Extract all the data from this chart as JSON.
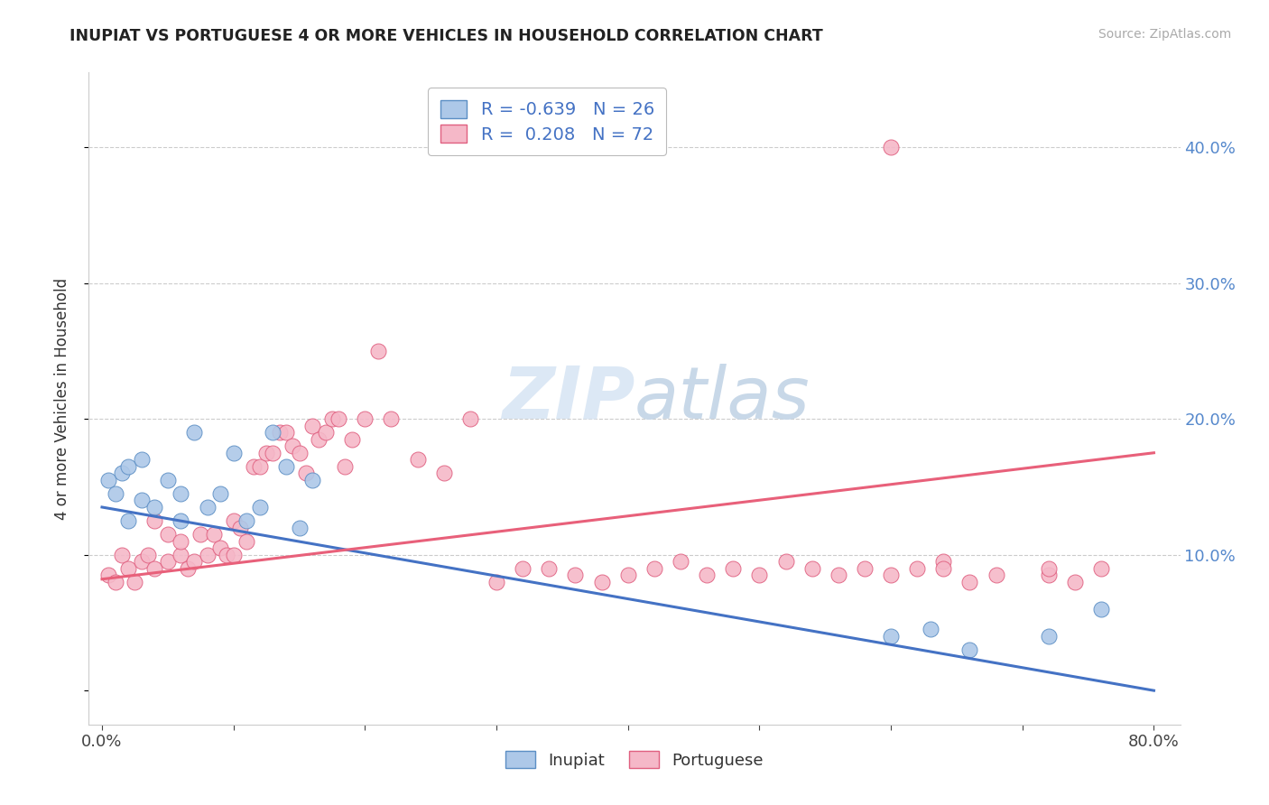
{
  "title": "INUPIAT VS PORTUGUESE 4 OR MORE VEHICLES IN HOUSEHOLD CORRELATION CHART",
  "source": "Source: ZipAtlas.com",
  "ylabel": "4 or more Vehicles in Household",
  "xlim": [
    -0.01,
    0.82
  ],
  "ylim": [
    -0.025,
    0.455
  ],
  "inupiat_R": -0.639,
  "inupiat_N": 26,
  "portuguese_R": 0.208,
  "portuguese_N": 72,
  "inupiat_color": "#adc8e8",
  "portuguese_color": "#f5b8c8",
  "inupiat_edge_color": "#5b8ec4",
  "portuguese_edge_color": "#e06080",
  "inupiat_line_color": "#4472c4",
  "portuguese_line_color": "#e8607a",
  "background_color": "#ffffff",
  "inupiat_x": [
    0.005,
    0.01,
    0.015,
    0.02,
    0.02,
    0.03,
    0.03,
    0.04,
    0.05,
    0.06,
    0.06,
    0.07,
    0.08,
    0.09,
    0.1,
    0.11,
    0.12,
    0.13,
    0.14,
    0.15,
    0.16,
    0.6,
    0.63,
    0.66,
    0.72,
    0.76
  ],
  "inupiat_y": [
    0.155,
    0.145,
    0.16,
    0.165,
    0.125,
    0.17,
    0.14,
    0.135,
    0.155,
    0.125,
    0.145,
    0.19,
    0.135,
    0.145,
    0.175,
    0.125,
    0.135,
    0.19,
    0.165,
    0.12,
    0.155,
    0.04,
    0.045,
    0.03,
    0.04,
    0.06
  ],
  "portuguese_x": [
    0.005,
    0.01,
    0.015,
    0.02,
    0.025,
    0.03,
    0.035,
    0.04,
    0.04,
    0.05,
    0.05,
    0.06,
    0.06,
    0.065,
    0.07,
    0.075,
    0.08,
    0.085,
    0.09,
    0.095,
    0.1,
    0.1,
    0.105,
    0.11,
    0.115,
    0.12,
    0.125,
    0.13,
    0.135,
    0.14,
    0.145,
    0.15,
    0.155,
    0.16,
    0.165,
    0.17,
    0.175,
    0.18,
    0.185,
    0.19,
    0.2,
    0.21,
    0.22,
    0.24,
    0.26,
    0.28,
    0.3,
    0.32,
    0.34,
    0.36,
    0.38,
    0.4,
    0.42,
    0.44,
    0.46,
    0.48,
    0.5,
    0.52,
    0.54,
    0.56,
    0.58,
    0.6,
    0.6,
    0.62,
    0.64,
    0.64,
    0.66,
    0.68,
    0.72,
    0.72,
    0.74,
    0.76
  ],
  "portuguese_y": [
    0.085,
    0.08,
    0.1,
    0.09,
    0.08,
    0.095,
    0.1,
    0.09,
    0.125,
    0.095,
    0.115,
    0.1,
    0.11,
    0.09,
    0.095,
    0.115,
    0.1,
    0.115,
    0.105,
    0.1,
    0.1,
    0.125,
    0.12,
    0.11,
    0.165,
    0.165,
    0.175,
    0.175,
    0.19,
    0.19,
    0.18,
    0.175,
    0.16,
    0.195,
    0.185,
    0.19,
    0.2,
    0.2,
    0.165,
    0.185,
    0.2,
    0.25,
    0.2,
    0.17,
    0.16,
    0.2,
    0.08,
    0.09,
    0.09,
    0.085,
    0.08,
    0.085,
    0.09,
    0.095,
    0.085,
    0.09,
    0.085,
    0.095,
    0.09,
    0.085,
    0.09,
    0.085,
    0.4,
    0.09,
    0.095,
    0.09,
    0.08,
    0.085,
    0.085,
    0.09,
    0.08,
    0.09
  ]
}
